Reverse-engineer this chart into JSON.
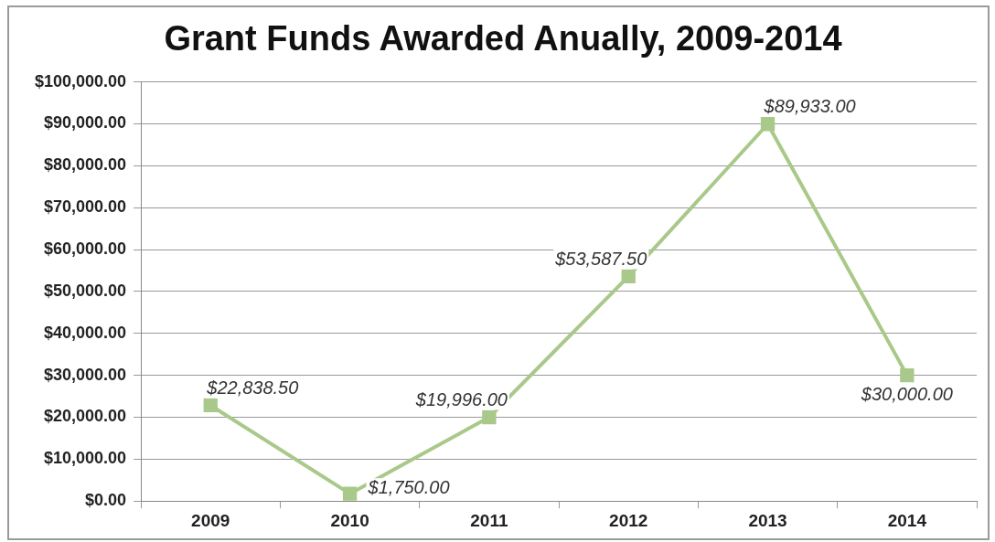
{
  "chart_data": {
    "type": "line",
    "title": "Grant Funds Awarded Anually, 2009-2014",
    "categories": [
      "2009",
      "2010",
      "2011",
      "2012",
      "2013",
      "2014"
    ],
    "series": [
      {
        "color": "#a9c98a",
        "values": [
          22838.5,
          1750,
          19996,
          53587.5,
          89933,
          30000
        ],
        "value_labels": [
          "$22,838.50",
          "$1,750.00",
          "$19,996.00",
          "$53,587.50",
          "$89,933.00",
          "$30,000.00"
        ]
      }
    ],
    "ylim": [
      0,
      100000
    ],
    "yticks": [
      {
        "value": 0,
        "label": "$0.00"
      },
      {
        "value": 10000,
        "label": "$10,000.00"
      },
      {
        "value": 20000,
        "label": "$20,000.00"
      },
      {
        "value": 30000,
        "label": "$30,000.00"
      },
      {
        "value": 40000,
        "label": "$40,000.00"
      },
      {
        "value": 50000,
        "label": "$50,000.00"
      },
      {
        "value": 60000,
        "label": "$60,000.00"
      },
      {
        "value": 70000,
        "label": "$70,000.00"
      },
      {
        "value": 80000,
        "label": "$80,000.00"
      },
      {
        "value": 90000,
        "label": "$90,000.00"
      },
      {
        "value": 100000,
        "label": "$100,000.00"
      }
    ],
    "grid": "y",
    "legend": false,
    "marker": "square",
    "line_style": "solid"
  }
}
